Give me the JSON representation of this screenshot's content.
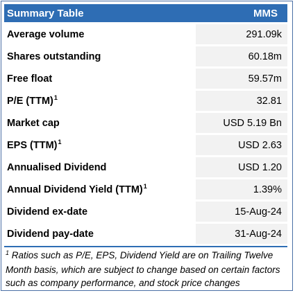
{
  "header": {
    "title": "Summary Table",
    "ticker": "MMS"
  },
  "rows": [
    {
      "label": "Average volume",
      "marker": "",
      "value": "291.09k"
    },
    {
      "label": "Shares outstanding",
      "marker": "",
      "value": "60.18m"
    },
    {
      "label": "Free float",
      "marker": "",
      "value": "59.57m"
    },
    {
      "label": "P/E (TTM)",
      "marker": "1",
      "value": "32.81"
    },
    {
      "label": "Market cap",
      "marker": "",
      "value": "USD 5.19 Bn"
    },
    {
      "label": "EPS (TTM)",
      "marker": "1",
      "value": "USD 2.63"
    },
    {
      "label": "Annualised Dividend",
      "marker": "",
      "value": "USD 1.20"
    },
    {
      "label": "Annual Dividend Yield (TTM)",
      "marker": "1",
      "value": "1.39%"
    },
    {
      "label": "Dividend ex-date",
      "marker": "",
      "value": "15-Aug-24"
    },
    {
      "label": "Dividend pay-date",
      "marker": "",
      "value": "31-Aug-24"
    }
  ],
  "footnote": {
    "marker": "1",
    "text": "Ratios such as P/E, EPS, Dividend Yield are on Trailing Twelve Month basis, which are subject to change based on certain factors such as company performance, and stock price changes"
  }
}
